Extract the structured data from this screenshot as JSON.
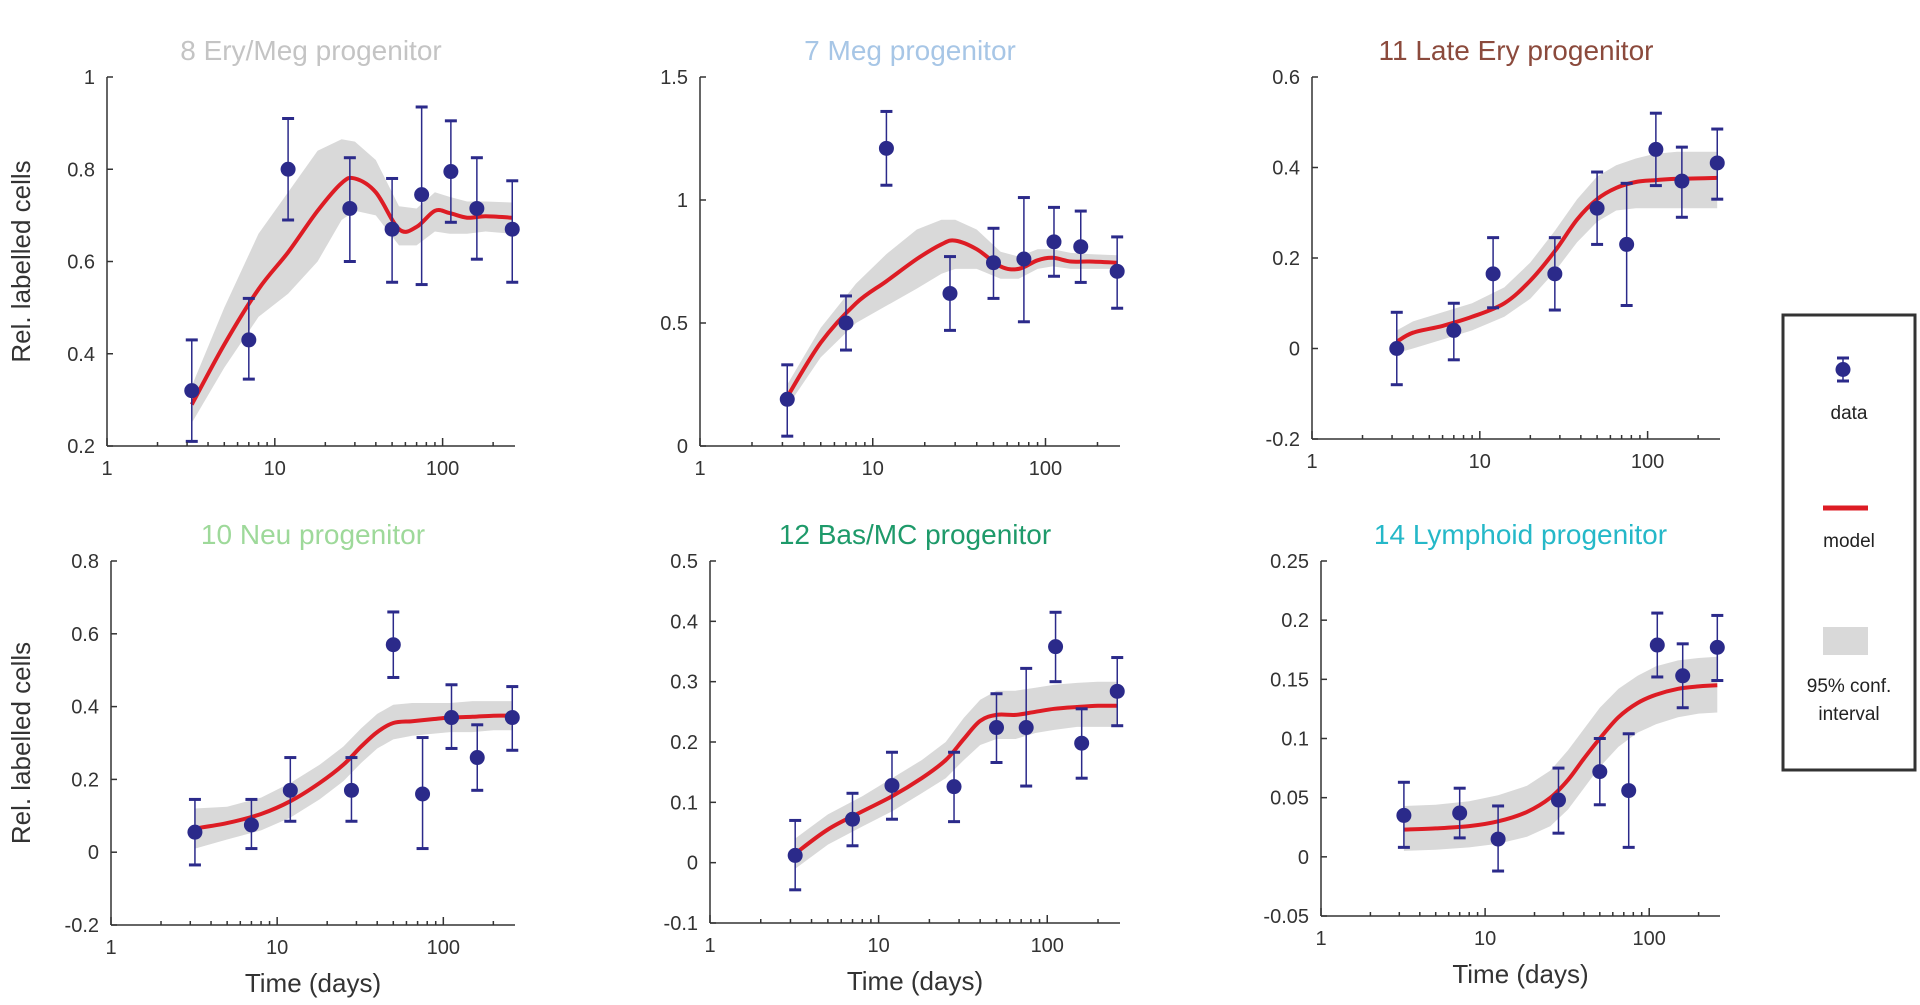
{
  "colors": {
    "data": "#2b2a8a",
    "model": "#dd1c24",
    "ci": "#d9d9d9",
    "axis": "#333333"
  },
  "legend": {
    "data_label": "data",
    "model_label": "model",
    "ci_label_line1": "95% conf.",
    "ci_label_line2": "interval"
  },
  "chart_data": [
    {
      "type": "line",
      "title": "8 Ery/Meg progenitor",
      "title_color": "#c4c4c4",
      "xlabel": "",
      "ylabel": "Rel. labelled cells",
      "xscale": "log",
      "xlim": [
        1,
        270
      ],
      "ylim": [
        0.2,
        1
      ],
      "yticks": [
        0.2,
        0.4,
        0.6,
        0.8,
        1
      ],
      "ytick_labels": [
        "0.2",
        "0.4",
        "0.6",
        "0.8",
        "1"
      ],
      "xticks": [
        1,
        10,
        100
      ],
      "xtick_labels": [
        "1",
        "10",
        "100"
      ],
      "points": [
        {
          "x": 3.2,
          "y": 0.32,
          "lo": 0.21,
          "hi": 0.43
        },
        {
          "x": 7,
          "y": 0.43,
          "lo": 0.345,
          "hi": 0.52
        },
        {
          "x": 12,
          "y": 0.8,
          "lo": 0.69,
          "hi": 0.91
        },
        {
          "x": 28,
          "y": 0.715,
          "lo": 0.6,
          "hi": 0.825
        },
        {
          "x": 50,
          "y": 0.67,
          "lo": 0.555,
          "hi": 0.78
        },
        {
          "x": 75,
          "y": 0.745,
          "lo": 0.55,
          "hi": 0.935
        },
        {
          "x": 112,
          "y": 0.795,
          "lo": 0.685,
          "hi": 0.905
        },
        {
          "x": 160,
          "y": 0.715,
          "lo": 0.605,
          "hi": 0.825
        },
        {
          "x": 260,
          "y": 0.67,
          "lo": 0.555,
          "hi": 0.775
        }
      ],
      "model": {
        "x": [
          3.2,
          5,
          8,
          12,
          18,
          25,
          30,
          40,
          55,
          70,
          90,
          110,
          140,
          180,
          260
        ],
        "y": [
          0.29,
          0.42,
          0.54,
          0.62,
          0.71,
          0.77,
          0.78,
          0.75,
          0.67,
          0.675,
          0.71,
          0.705,
          0.695,
          0.698,
          0.695
        ],
        "ci_lo": [
          0.25,
          0.37,
          0.48,
          0.53,
          0.6,
          0.69,
          0.71,
          0.7,
          0.635,
          0.635,
          0.665,
          0.66,
          0.66,
          0.665,
          0.66
        ],
        "ci_hi": [
          0.33,
          0.5,
          0.66,
          0.75,
          0.84,
          0.865,
          0.86,
          0.82,
          0.72,
          0.715,
          0.75,
          0.74,
          0.73,
          0.73,
          0.728
        ]
      }
    },
    {
      "type": "line",
      "title": "7 Meg progenitor",
      "title_color": "#a7c6e6",
      "xlabel": "",
      "ylabel": "",
      "xscale": "log",
      "xlim": [
        1,
        270
      ],
      "ylim": [
        0,
        1.5
      ],
      "yticks": [
        0,
        0.5,
        1,
        1.5
      ],
      "ytick_labels": [
        "0",
        "0.5",
        "1",
        "1.5"
      ],
      "xticks": [
        1,
        10,
        100
      ],
      "xtick_labels": [
        "1",
        "10",
        "100"
      ],
      "points": [
        {
          "x": 3.2,
          "y": 0.19,
          "lo": 0.04,
          "hi": 0.33
        },
        {
          "x": 7,
          "y": 0.5,
          "lo": 0.39,
          "hi": 0.61
        },
        {
          "x": 12,
          "y": 1.21,
          "lo": 1.06,
          "hi": 1.36
        },
        {
          "x": 28,
          "y": 0.62,
          "lo": 0.47,
          "hi": 0.77
        },
        {
          "x": 50,
          "y": 0.745,
          "lo": 0.6,
          "hi": 0.885
        },
        {
          "x": 75,
          "y": 0.76,
          "lo": 0.505,
          "hi": 1.01
        },
        {
          "x": 112,
          "y": 0.83,
          "lo": 0.69,
          "hi": 0.97
        },
        {
          "x": 160,
          "y": 0.81,
          "lo": 0.665,
          "hi": 0.955
        },
        {
          "x": 260,
          "y": 0.71,
          "lo": 0.56,
          "hi": 0.85
        }
      ],
      "model": {
        "x": [
          3.2,
          5,
          8,
          12,
          18,
          25,
          30,
          40,
          55,
          70,
          90,
          110,
          140,
          180,
          260
        ],
        "y": [
          0.2,
          0.42,
          0.58,
          0.67,
          0.76,
          0.82,
          0.835,
          0.8,
          0.73,
          0.72,
          0.755,
          0.765,
          0.75,
          0.75,
          0.745
        ],
        "ci_lo": [
          0.16,
          0.36,
          0.5,
          0.57,
          0.64,
          0.7,
          0.72,
          0.72,
          0.68,
          0.68,
          0.72,
          0.73,
          0.72,
          0.72,
          0.72
        ],
        "ci_hi": [
          0.25,
          0.48,
          0.66,
          0.78,
          0.88,
          0.92,
          0.92,
          0.88,
          0.79,
          0.77,
          0.8,
          0.8,
          0.785,
          0.78,
          0.775
        ]
      }
    },
    {
      "type": "line",
      "title": "11 Late Ery progenitor",
      "title_color": "#8b4a3c",
      "xlabel": "",
      "ylabel": "",
      "xscale": "log",
      "xlim": [
        1,
        270
      ],
      "ylim": [
        -0.2,
        0.6
      ],
      "yticks": [
        -0.2,
        0,
        0.2,
        0.4,
        0.6
      ],
      "ytick_labels": [
        "-0.2",
        "0",
        "0.2",
        "0.4",
        "0.6"
      ],
      "xticks": [
        1,
        10,
        100
      ],
      "xtick_labels": [
        "1",
        "10",
        "100"
      ],
      "points": [
        {
          "x": 3.2,
          "y": 0.0,
          "lo": -0.08,
          "hi": 0.08
        },
        {
          "x": 7,
          "y": 0.04,
          "lo": -0.025,
          "hi": 0.1
        },
        {
          "x": 12,
          "y": 0.165,
          "lo": 0.09,
          "hi": 0.245
        },
        {
          "x": 28,
          "y": 0.165,
          "lo": 0.085,
          "hi": 0.245
        },
        {
          "x": 50,
          "y": 0.31,
          "lo": 0.23,
          "hi": 0.39
        },
        {
          "x": 75,
          "y": 0.23,
          "lo": 0.095,
          "hi": 0.365
        },
        {
          "x": 112,
          "y": 0.44,
          "lo": 0.36,
          "hi": 0.52
        },
        {
          "x": 160,
          "y": 0.37,
          "lo": 0.29,
          "hi": 0.445
        },
        {
          "x": 260,
          "y": 0.41,
          "lo": 0.33,
          "hi": 0.485
        }
      ],
      "model": {
        "x": [
          3.2,
          4,
          6,
          9,
          14,
          20,
          28,
          38,
          50,
          65,
          85,
          110,
          150,
          200,
          260
        ],
        "y": [
          0.015,
          0.035,
          0.05,
          0.07,
          0.1,
          0.15,
          0.215,
          0.285,
          0.33,
          0.355,
          0.368,
          0.372,
          0.375,
          0.376,
          0.377
        ],
        "ci_lo": [
          -0.01,
          0.0,
          0.02,
          0.04,
          0.07,
          0.11,
          0.17,
          0.235,
          0.28,
          0.305,
          0.31,
          0.31,
          0.31,
          0.31,
          0.31
        ],
        "ci_hi": [
          0.04,
          0.06,
          0.08,
          0.1,
          0.135,
          0.19,
          0.26,
          0.33,
          0.38,
          0.405,
          0.42,
          0.43,
          0.435,
          0.435,
          0.435
        ]
      }
    },
    {
      "type": "line",
      "title": "10 Neu progenitor",
      "title_color": "#9ed99a",
      "xlabel": "Time (days)",
      "ylabel": "Rel. labelled cells",
      "xscale": "log",
      "xlim": [
        1,
        270
      ],
      "ylim": [
        -0.2,
        0.8
      ],
      "yticks": [
        -0.2,
        0,
        0.2,
        0.4,
        0.6,
        0.8
      ],
      "ytick_labels": [
        "-0.2",
        "0",
        "0.2",
        "0.4",
        "0.6",
        "0.8"
      ],
      "xticks": [
        1,
        10,
        100
      ],
      "xtick_labels": [
        "1",
        "10",
        "100"
      ],
      "points": [
        {
          "x": 3.2,
          "y": 0.055,
          "lo": -0.035,
          "hi": 0.145
        },
        {
          "x": 7,
          "y": 0.075,
          "lo": 0.01,
          "hi": 0.145
        },
        {
          "x": 12,
          "y": 0.17,
          "lo": 0.085,
          "hi": 0.26
        },
        {
          "x": 28,
          "y": 0.17,
          "lo": 0.085,
          "hi": 0.26
        },
        {
          "x": 50,
          "y": 0.57,
          "lo": 0.48,
          "hi": 0.66
        },
        {
          "x": 75,
          "y": 0.16,
          "lo": 0.01,
          "hi": 0.315
        },
        {
          "x": 112,
          "y": 0.37,
          "lo": 0.285,
          "hi": 0.46
        },
        {
          "x": 160,
          "y": 0.26,
          "lo": 0.17,
          "hi": 0.35
        },
        {
          "x": 260,
          "y": 0.37,
          "lo": 0.28,
          "hi": 0.455
        }
      ],
      "model": {
        "x": [
          3.2,
          5,
          8,
          12,
          18,
          25,
          32,
          40,
          50,
          65,
          85,
          110,
          150,
          200,
          260
        ],
        "y": [
          0.065,
          0.08,
          0.105,
          0.14,
          0.19,
          0.24,
          0.29,
          0.33,
          0.355,
          0.36,
          0.365,
          0.37,
          0.372,
          0.375,
          0.375
        ],
        "ci_lo": [
          0.01,
          0.035,
          0.06,
          0.095,
          0.145,
          0.195,
          0.245,
          0.285,
          0.31,
          0.32,
          0.325,
          0.33,
          0.33,
          0.335,
          0.335
        ],
        "ci_hi": [
          0.12,
          0.125,
          0.15,
          0.19,
          0.24,
          0.29,
          0.34,
          0.38,
          0.405,
          0.41,
          0.41,
          0.41,
          0.415,
          0.415,
          0.415
        ]
      }
    },
    {
      "type": "line",
      "title": "12 Bas/MC progenitor",
      "title_color": "#1e9a6a",
      "xlabel": "Time (days)",
      "ylabel": "",
      "xscale": "log",
      "xlim": [
        1,
        270
      ],
      "ylim": [
        -0.1,
        0.5
      ],
      "yticks": [
        -0.1,
        0,
        0.1,
        0.2,
        0.3,
        0.4,
        0.5
      ],
      "ytick_labels": [
        "-0.1",
        "0",
        "0.1",
        "0.2",
        "0.3",
        "0.4",
        "0.5"
      ],
      "xticks": [
        1,
        10,
        100
      ],
      "xtick_labels": [
        "1",
        "10",
        "100"
      ],
      "points": [
        {
          "x": 3.2,
          "y": 0.012,
          "lo": -0.045,
          "hi": 0.07
        },
        {
          "x": 7,
          "y": 0.072,
          "lo": 0.028,
          "hi": 0.115
        },
        {
          "x": 12,
          "y": 0.128,
          "lo": 0.072,
          "hi": 0.183
        },
        {
          "x": 28,
          "y": 0.126,
          "lo": 0.068,
          "hi": 0.183
        },
        {
          "x": 50,
          "y": 0.224,
          "lo": 0.166,
          "hi": 0.28
        },
        {
          "x": 75,
          "y": 0.224,
          "lo": 0.127,
          "hi": 0.322
        },
        {
          "x": 112,
          "y": 0.358,
          "lo": 0.3,
          "hi": 0.415
        },
        {
          "x": 160,
          "y": 0.198,
          "lo": 0.14,
          "hi": 0.255
        },
        {
          "x": 260,
          "y": 0.284,
          "lo": 0.227,
          "hi": 0.34
        }
      ],
      "model": {
        "x": [
          3.2,
          5,
          8,
          12,
          18,
          25,
          32,
          40,
          50,
          65,
          85,
          110,
          150,
          200,
          260
        ],
        "y": [
          0.015,
          0.055,
          0.085,
          0.11,
          0.14,
          0.17,
          0.205,
          0.235,
          0.245,
          0.245,
          0.25,
          0.255,
          0.258,
          0.26,
          0.26
        ],
        "ci_lo": [
          -0.01,
          0.03,
          0.06,
          0.085,
          0.115,
          0.14,
          0.17,
          0.195,
          0.205,
          0.205,
          0.215,
          0.22,
          0.225,
          0.225,
          0.225
        ],
        "ci_hi": [
          0.04,
          0.08,
          0.11,
          0.14,
          0.17,
          0.2,
          0.24,
          0.27,
          0.285,
          0.285,
          0.29,
          0.295,
          0.298,
          0.3,
          0.3
        ]
      }
    },
    {
      "type": "line",
      "title": "14 Lymphoid progenitor",
      "title_color": "#25b8c8",
      "xlabel": "Time (days)",
      "ylabel": "",
      "xscale": "log",
      "xlim": [
        1,
        270
      ],
      "ylim": [
        -0.05,
        0.25
      ],
      "yticks": [
        -0.05,
        0,
        0.05,
        0.1,
        0.15,
        0.2,
        0.25
      ],
      "ytick_labels": [
        "-0.05",
        "0",
        "0.05",
        "0.1",
        "0.15",
        "0.2",
        "0.25"
      ],
      "xticks": [
        1,
        10,
        100
      ],
      "xtick_labels": [
        "1",
        "10",
        "100"
      ],
      "points": [
        {
          "x": 3.2,
          "y": 0.035,
          "lo": 0.008,
          "hi": 0.063
        },
        {
          "x": 7,
          "y": 0.037,
          "lo": 0.016,
          "hi": 0.058
        },
        {
          "x": 12,
          "y": 0.015,
          "lo": -0.012,
          "hi": 0.043
        },
        {
          "x": 28,
          "y": 0.048,
          "lo": 0.02,
          "hi": 0.075
        },
        {
          "x": 50,
          "y": 0.072,
          "lo": 0.044,
          "hi": 0.1
        },
        {
          "x": 75,
          "y": 0.056,
          "lo": 0.008,
          "hi": 0.104
        },
        {
          "x": 112,
          "y": 0.179,
          "lo": 0.152,
          "hi": 0.206
        },
        {
          "x": 160,
          "y": 0.153,
          "lo": 0.126,
          "hi": 0.18
        },
        {
          "x": 260,
          "y": 0.177,
          "lo": 0.149,
          "hi": 0.204
        }
      ],
      "model": {
        "x": [
          3.2,
          5,
          8,
          12,
          18,
          25,
          32,
          40,
          50,
          65,
          85,
          110,
          150,
          200,
          260
        ],
        "y": [
          0.023,
          0.024,
          0.026,
          0.03,
          0.038,
          0.05,
          0.065,
          0.083,
          0.1,
          0.118,
          0.13,
          0.137,
          0.142,
          0.144,
          0.145
        ],
        "ci_lo": [
          0.005,
          0.006,
          0.008,
          0.011,
          0.017,
          0.026,
          0.04,
          0.058,
          0.076,
          0.093,
          0.105,
          0.112,
          0.118,
          0.121,
          0.122
        ],
        "ci_hi": [
          0.043,
          0.044,
          0.047,
          0.052,
          0.06,
          0.073,
          0.09,
          0.108,
          0.126,
          0.142,
          0.153,
          0.161,
          0.166,
          0.168,
          0.169
        ]
      }
    }
  ]
}
